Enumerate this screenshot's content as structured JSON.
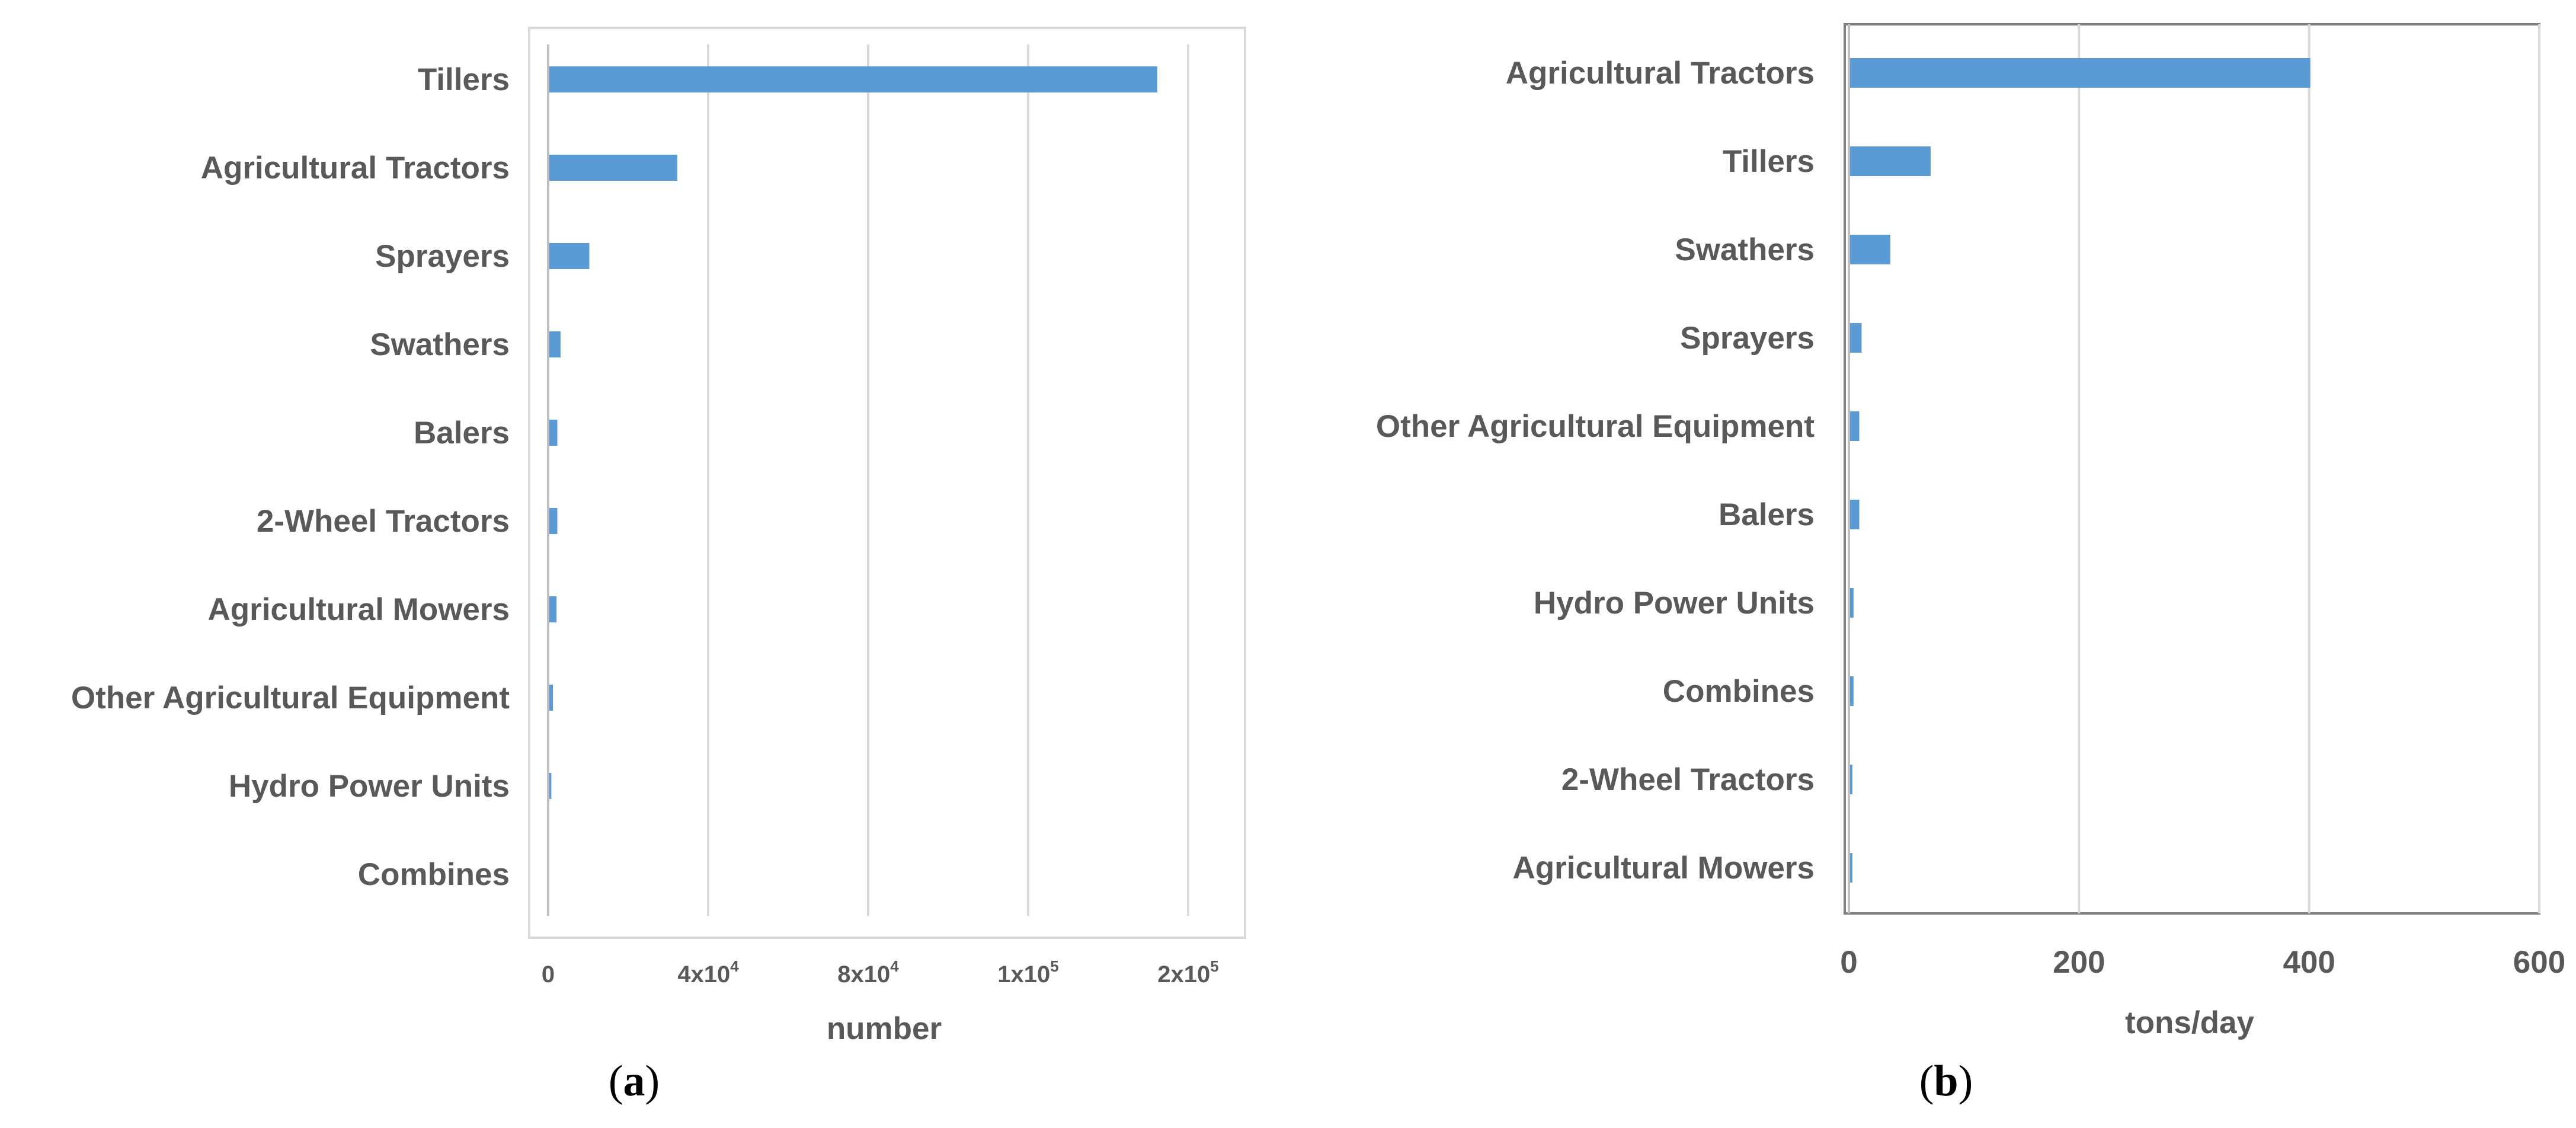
{
  "chart_data": [
    {
      "type": "bar",
      "orientation": "horizontal",
      "panel_label": "a",
      "categories": [
        "Tillers",
        "Agricultural Tractors",
        "Sprayers",
        "Swathers",
        "Balers",
        "2-Wheel Tractors",
        "Agricultural Mowers",
        "Other Agricultural Equipment",
        "Hydro Power Units",
        "Combines"
      ],
      "values": [
        152000,
        32000,
        10000,
        2800,
        2000,
        2000,
        1800,
        900,
        500,
        0
      ],
      "xlabel": "number",
      "xticks": [
        {
          "value": 0,
          "base": "0",
          "exp": ""
        },
        {
          "value": 40000,
          "base": "4x10",
          "exp": "4"
        },
        {
          "value": 80000,
          "base": "8x10",
          "exp": "4"
        },
        {
          "value": 120000,
          "base": "1x10",
          "exp": "5"
        },
        {
          "value": 160000,
          "base": "2x10",
          "exp": "5"
        }
      ],
      "xlim": [
        0,
        160000
      ],
      "grid": true,
      "bar_color": "#5b9bd5"
    },
    {
      "type": "bar",
      "orientation": "horizontal",
      "panel_label": "b",
      "categories": [
        "Agricultural Tractors",
        "Tillers",
        "Swathers",
        "Sprayers",
        "Other Agricultural Equipment",
        "Balers",
        "Hydro Power Units",
        "Combines",
        "2-Wheel Tractors",
        "Agricultural Mowers"
      ],
      "values": [
        400,
        70,
        35,
        10,
        8,
        8,
        3,
        3,
        2,
        2
      ],
      "xlabel": "tons/day",
      "xticks": [
        {
          "value": 0,
          "base": "0",
          "exp": ""
        },
        {
          "value": 200,
          "base": "200",
          "exp": ""
        },
        {
          "value": 400,
          "base": "400",
          "exp": ""
        },
        {
          "value": 600,
          "base": "600",
          "exp": ""
        }
      ],
      "xlim": [
        0,
        600
      ],
      "grid": true,
      "bar_color": "#5b9bd5"
    }
  ]
}
